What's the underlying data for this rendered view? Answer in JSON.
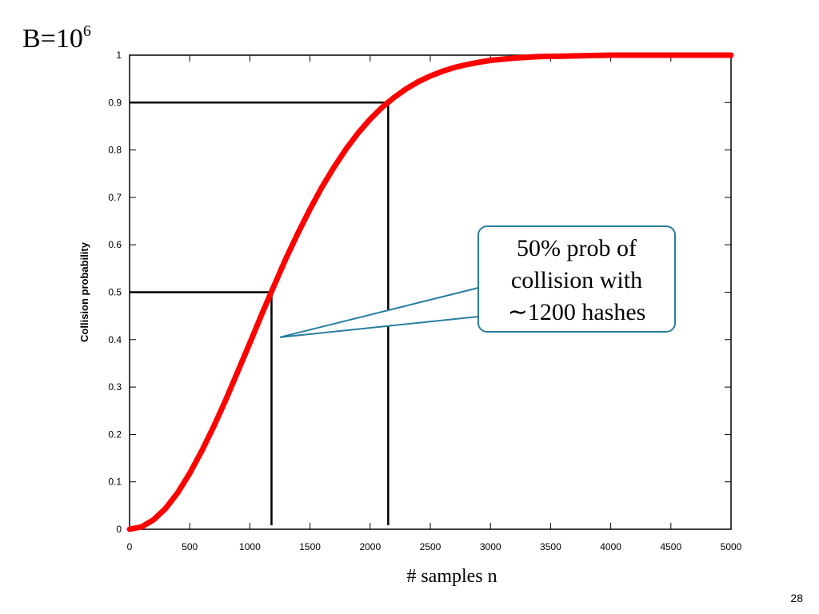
{
  "slide": {
    "title_base": "B=10",
    "title_exponent": "6",
    "page_number": "28"
  },
  "callout": {
    "lines": [
      "50% prob of",
      "collision with",
      "∼1200 hashes"
    ]
  },
  "chart_data": {
    "type": "line",
    "title": "",
    "xlabel": "# samples  n",
    "ylabel": "Collision probability",
    "xlim": [
      0,
      5000
    ],
    "ylim": [
      0,
      1
    ],
    "x_ticks": [
      0,
      500,
      1000,
      1500,
      2000,
      2500,
      3000,
      3500,
      4000,
      4500,
      5000
    ],
    "y_ticks": [
      0,
      0.1,
      0.2,
      0.3,
      0.4,
      0.5,
      0.6,
      0.7,
      0.8,
      0.9,
      1
    ],
    "y_tick_labels": [
      "0",
      "0.1",
      "0.2",
      "0.3",
      "0.4",
      "0.5",
      "0.6",
      "0.7",
      "0.8",
      "0.9",
      "1"
    ],
    "grid": false,
    "series": [
      {
        "color": "#ff0000",
        "x": [
          0,
          100,
          200,
          300,
          400,
          500,
          600,
          700,
          800,
          900,
          1000,
          1100,
          1200,
          1300,
          1400,
          1500,
          1600,
          1700,
          1800,
          1900,
          2000,
          2100,
          2200,
          2300,
          2400,
          2500,
          2600,
          2700,
          2800,
          2900,
          3000,
          3200,
          3400,
          3600,
          3800,
          4000,
          4500,
          5000
        ],
        "y": [
          0,
          0.005,
          0.02,
          0.044,
          0.077,
          0.118,
          0.165,
          0.217,
          0.273,
          0.333,
          0.393,
          0.454,
          0.513,
          0.571,
          0.625,
          0.675,
          0.722,
          0.764,
          0.802,
          0.836,
          0.865,
          0.89,
          0.911,
          0.929,
          0.944,
          0.956,
          0.966,
          0.974,
          0.98,
          0.985,
          0.989,
          0.994,
          0.997,
          0.998,
          0.999,
          1.0,
          1.0,
          1.0
        ]
      }
    ],
    "reference_lines": [
      {
        "x": 1180,
        "y": 0.5,
        "color": "#000000"
      },
      {
        "x": 2150,
        "y": 0.9,
        "color": "#000000"
      }
    ],
    "annotation": {
      "x": 1250,
      "y": 0.405
    }
  }
}
